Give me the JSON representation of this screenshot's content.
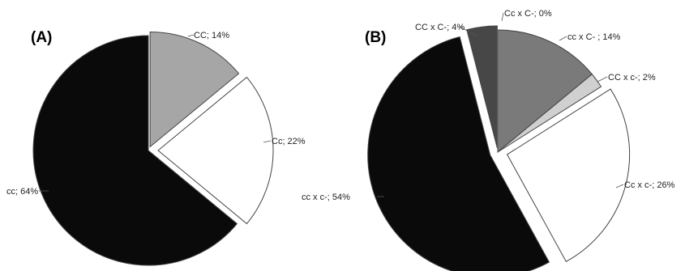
{
  "chart_data": [
    {
      "type": "pie",
      "panel_label": "(A)",
      "start_angle_deg": 0,
      "direction": "clockwise",
      "exploded_slices": [
        "CC",
        "Cc"
      ],
      "slices": [
        {
          "name": "CC",
          "value": 14,
          "label": "CC; 14%",
          "color": "#a6a6a6"
        },
        {
          "name": "Cc",
          "value": 22,
          "label": "Cc; 22%",
          "color": "#ffffff"
        },
        {
          "name": "cc",
          "value": 64,
          "label": "cc; 64%",
          "color": "#0a0a0a"
        }
      ]
    },
    {
      "type": "pie",
      "panel_label": "(B)",
      "start_angle_deg": 0,
      "direction": "clockwise",
      "exploded_slices": [
        "CC x C-",
        "Cc x c-",
        "cc x c-"
      ],
      "slices": [
        {
          "name": "cc x C-",
          "value": 14,
          "label": "cc x C- ; 14%",
          "color": "#7a7a7a"
        },
        {
          "name": "CC x c-",
          "value": 2,
          "label": "CC x c-; 2%",
          "color": "#d0d0d0"
        },
        {
          "name": "Cc x c-",
          "value": 26,
          "label": "Cc x c-; 26%",
          "color": "#ffffff"
        },
        {
          "name": "cc x c-",
          "value": 54,
          "label": "cc x c-; 54%",
          "color": "#0a0a0a"
        },
        {
          "name": "CC x C-",
          "value": 4,
          "label": "CC x C-; 4%",
          "color": "#474747"
        },
        {
          "name": "Cc x C-",
          "value": 0,
          "label": "Cc x C-; 0%",
          "color": "#bbbbbb"
        }
      ]
    }
  ]
}
